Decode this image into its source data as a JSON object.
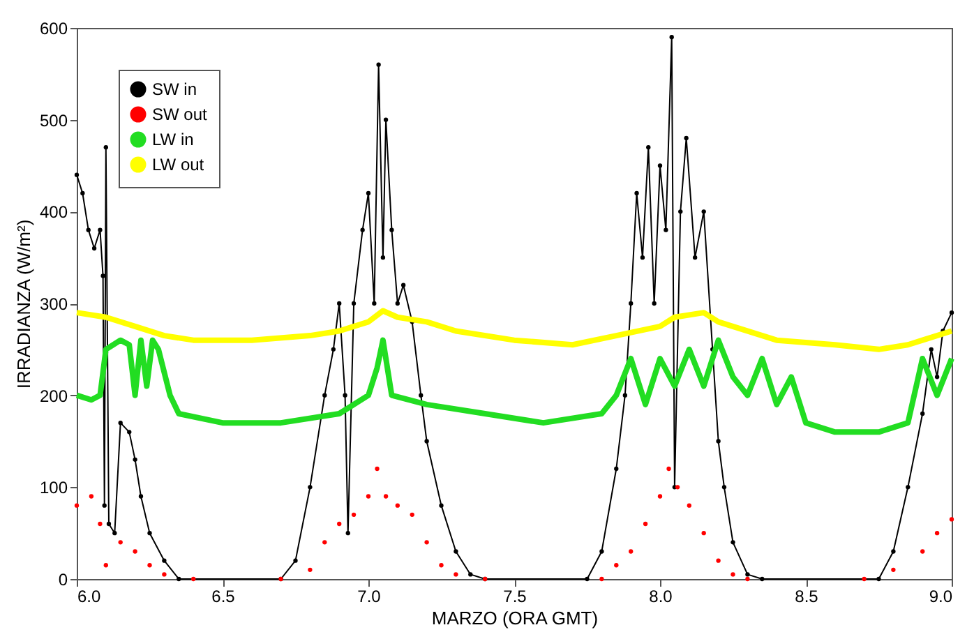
{
  "chart_data": {
    "type": "line",
    "xlabel": "MARZO (ORA GMT)",
    "ylabel": "IRRADIANZA (W/m²)",
    "xlim": [
      6,
      9
    ],
    "xticks": [
      {
        "value": 6,
        "label": "6.0"
      },
      6.5,
      {
        "value": 7,
        "label": "7.0"
      },
      7.5,
      {
        "value": 8,
        "label": "8.0"
      },
      8.5,
      {
        "value": 9,
        "label": "9.0"
      }
    ],
    "ylim": [
      0,
      600
    ],
    "yticks": [
      0,
      100,
      200,
      300,
      400,
      500,
      600
    ],
    "grid": false,
    "legend": "top left",
    "series": [
      {
        "name": "SW in",
        "marker": "circle",
        "line_style": "solid",
        "color": "#000000",
        "x": [
          6.0,
          6.02,
          6.04,
          6.06,
          6.08,
          6.09,
          6.095,
          6.1,
          6.11,
          6.13,
          6.15,
          6.18,
          6.2,
          6.22,
          6.25,
          6.3,
          6.35,
          6.7,
          6.75,
          6.8,
          6.85,
          6.88,
          6.9,
          6.92,
          6.93,
          6.95,
          6.98,
          7.0,
          7.02,
          7.035,
          7.05,
          7.06,
          7.08,
          7.1,
          7.12,
          7.15,
          7.18,
          7.2,
          7.25,
          7.3,
          7.35,
          7.4,
          7.75,
          7.8,
          7.85,
          7.88,
          7.9,
          7.92,
          7.94,
          7.96,
          7.98,
          8.0,
          8.02,
          8.04,
          8.05,
          8.07,
          8.09,
          8.12,
          8.15,
          8.18,
          8.2,
          8.22,
          8.25,
          8.3,
          8.35,
          8.75,
          8.8,
          8.85,
          8.9,
          8.93,
          8.95,
          8.97,
          9.0
        ],
        "values": [
          440,
          420,
          380,
          360,
          380,
          330,
          80,
          470,
          60,
          50,
          170,
          160,
          130,
          90,
          50,
          20,
          0,
          0,
          20,
          100,
          200,
          250,
          300,
          200,
          50,
          300,
          380,
          420,
          300,
          560,
          350,
          500,
          380,
          300,
          320,
          280,
          200,
          150,
          80,
          30,
          5,
          0,
          0,
          30,
          120,
          200,
          300,
          420,
          350,
          470,
          300,
          450,
          380,
          590,
          100,
          400,
          480,
          350,
          400,
          250,
          150,
          100,
          40,
          5,
          0,
          0,
          30,
          100,
          180,
          250,
          220,
          270,
          290
        ]
      },
      {
        "name": "SW out",
        "type": "scatter",
        "marker": "circle",
        "color": "#ff0000",
        "x": [
          6.0,
          6.05,
          6.08,
          6.1,
          6.15,
          6.2,
          6.25,
          6.3,
          6.4,
          6.7,
          6.8,
          6.85,
          6.9,
          6.95,
          7.0,
          7.03,
          7.06,
          7.1,
          7.15,
          7.2,
          7.25,
          7.3,
          7.4,
          7.8,
          7.85,
          7.9,
          7.95,
          8.0,
          8.03,
          8.06,
          8.1,
          8.15,
          8.2,
          8.25,
          8.3,
          8.7,
          8.8,
          8.9,
          8.95,
          9.0
        ],
        "values": [
          80,
          90,
          60,
          15,
          40,
          30,
          15,
          5,
          0,
          0,
          10,
          40,
          60,
          70,
          90,
          120,
          90,
          80,
          70,
          40,
          15,
          5,
          0,
          0,
          15,
          30,
          60,
          90,
          120,
          100,
          80,
          50,
          20,
          5,
          0,
          0,
          10,
          30,
          50,
          65
        ]
      },
      {
        "name": "LW in",
        "marker": "none",
        "line_style": "solid",
        "color": "#22dd22",
        "x": [
          6.0,
          6.05,
          6.08,
          6.1,
          6.15,
          6.18,
          6.2,
          6.22,
          6.24,
          6.26,
          6.28,
          6.32,
          6.35,
          6.5,
          6.7,
          6.9,
          7.0,
          7.03,
          7.05,
          7.08,
          7.2,
          7.4,
          7.6,
          7.8,
          7.85,
          7.9,
          7.95,
          8.0,
          8.05,
          8.1,
          8.15,
          8.2,
          8.25,
          8.3,
          8.35,
          8.4,
          8.45,
          8.5,
          8.6,
          8.75,
          8.85,
          8.9,
          8.95,
          9.0
        ],
        "values": [
          200,
          195,
          200,
          250,
          260,
          255,
          200,
          260,
          210,
          260,
          250,
          200,
          180,
          170,
          170,
          180,
          200,
          230,
          260,
          200,
          190,
          180,
          170,
          180,
          200,
          240,
          190,
          240,
          210,
          250,
          210,
          260,
          220,
          200,
          240,
          190,
          220,
          170,
          160,
          160,
          170,
          240,
          200,
          240
        ]
      },
      {
        "name": "LW out",
        "marker": "none",
        "line_style": "solid",
        "color": "#ffff00",
        "x": [
          6.0,
          6.1,
          6.2,
          6.3,
          6.4,
          6.6,
          6.8,
          6.9,
          7.0,
          7.05,
          7.1,
          7.2,
          7.3,
          7.5,
          7.7,
          7.85,
          8.0,
          8.05,
          8.15,
          8.2,
          8.4,
          8.6,
          8.75,
          8.85,
          8.9,
          9.0
        ],
        "values": [
          290,
          285,
          275,
          265,
          260,
          260,
          265,
          270,
          280,
          292,
          285,
          280,
          270,
          260,
          255,
          265,
          275,
          285,
          290,
          280,
          260,
          255,
          250,
          255,
          260,
          270
        ]
      }
    ]
  }
}
